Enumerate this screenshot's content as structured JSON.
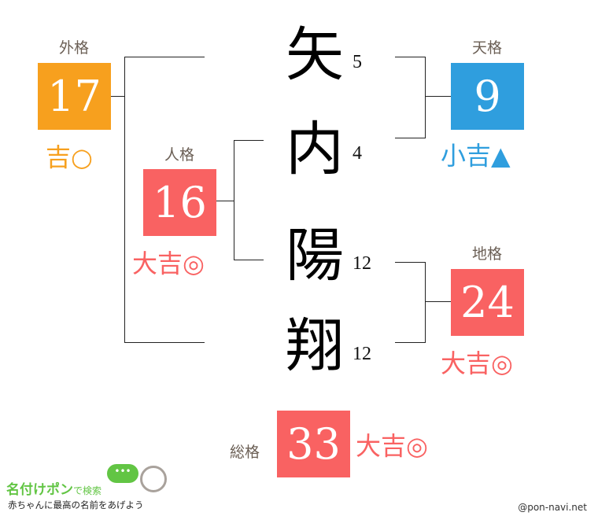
{
  "colors": {
    "kichi": "#f7a01e",
    "shokichi": "#2f9ede",
    "daikichi": "#f96262",
    "label": "#6b5f55"
  },
  "name_chars": [
    {
      "char": "矢",
      "strokes": "5"
    },
    {
      "char": "内",
      "strokes": "4"
    },
    {
      "char": "陽",
      "strokes": "12"
    },
    {
      "char": "翔",
      "strokes": "12"
    }
  ],
  "gaikaku": {
    "label": "外格",
    "value": "17",
    "fortune": "吉○"
  },
  "jinkaku": {
    "label": "人格",
    "value": "16",
    "fortune": "大吉◎"
  },
  "tenkaku": {
    "label": "天格",
    "value": "9",
    "fortune": "小吉▲"
  },
  "chikaku": {
    "label": "地格",
    "value": "24",
    "fortune": "大吉◎"
  },
  "soukaku": {
    "label": "総格",
    "value": "33",
    "fortune": "大吉◎"
  },
  "logo": {
    "title": "名付けポン",
    "suffix": "で検索",
    "tagline": "赤ちゃんに最高の名前をあげよう"
  },
  "credit": "@pon-navi.net"
}
